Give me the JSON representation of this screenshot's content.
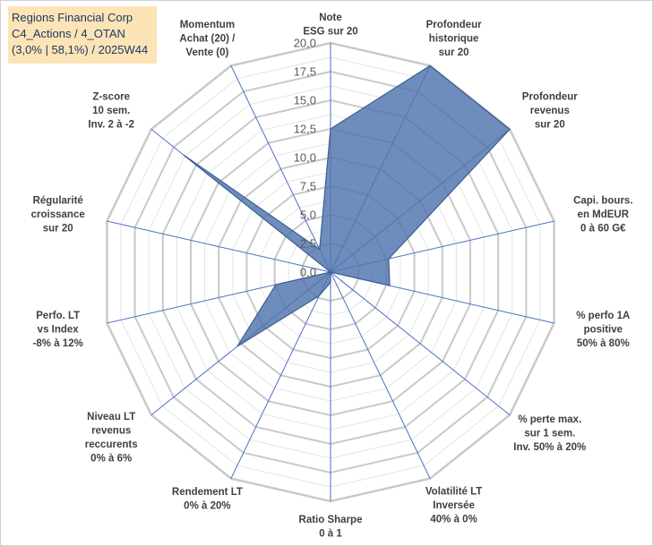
{
  "info": {
    "line1": "Regions Financial Corp",
    "line2": "C4_Actions / 4_OTAN",
    "line3": "(3,0% | 58,1%) / 2025W44"
  },
  "chart_data": {
    "type": "radar",
    "title": "",
    "rmin": 0,
    "rmax": 20,
    "tick_labels": [
      "0,0",
      "2,5",
      "5,0",
      "7,5",
      "10,0",
      "12,5",
      "15,0",
      "17,5",
      "20,0"
    ],
    "ticks": [
      0,
      2.5,
      5,
      7.5,
      10,
      12.5,
      15,
      17.5,
      20
    ],
    "minor_step": 1.25,
    "series_color": "#4f74ad",
    "axes": [
      {
        "label": [
          "Note",
          "ESG sur 20"
        ],
        "value": 12.5
      },
      {
        "label": [
          "Profondeur",
          "historique",
          "sur 20"
        ],
        "value": 20
      },
      {
        "label": [
          "Profondeur",
          "revenus",
          "sur 20"
        ],
        "value": 20
      },
      {
        "label": [
          "Capi. bours.",
          "en MdEUR",
          "0 à 60 G€"
        ],
        "value": 5.2
      },
      {
        "label": [
          "% perfo 1A",
          "positive",
          "50% à 80%"
        ],
        "value": 5.3
      },
      {
        "label": [
          "% perte max.",
          "sur 1 sem.",
          "Inv. 50% à 20%"
        ],
        "value": 0
      },
      {
        "label": [
          "Volatilité LT",
          "Inversée",
          "40% à 0%"
        ],
        "value": 0
      },
      {
        "label": [
          "Ratio Sharpe",
          "0 à 1"
        ],
        "value": 0.9
      },
      {
        "label": [
          "Rendement LT",
          "0% à 20%"
        ],
        "value": 2.3
      },
      {
        "label": [
          "Niveau LT",
          "revenus",
          "reccurents",
          "0% à 6%"
        ],
        "value": 10.4
      },
      {
        "label": [
          "Perfo. LT",
          "vs Index",
          "-8% à 12%"
        ],
        "value": 4.9
      },
      {
        "label": [
          "Régularité",
          "croissance",
          "sur 20"
        ],
        "value": 0
      },
      {
        "label": [
          "Z-score",
          "10 sem.",
          "Inv. 2 à -2"
        ],
        "value": 16.4
      },
      {
        "label": [
          "Momentum",
          "Achat (20) /",
          "Vente (0)"
        ],
        "value": 2.2
      }
    ]
  }
}
